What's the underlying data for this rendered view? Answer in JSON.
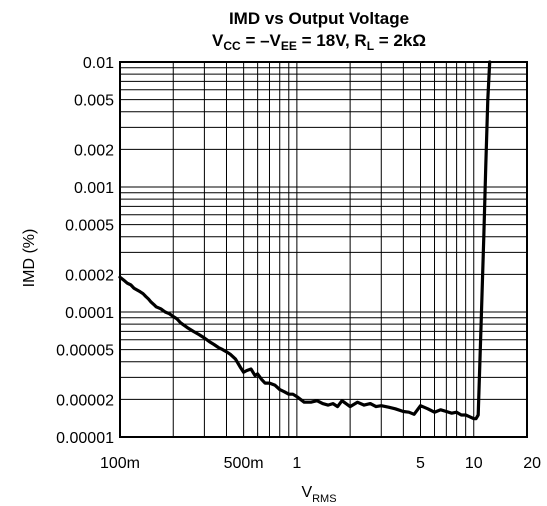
{
  "chart_data": {
    "type": "line",
    "title_line1": "IMD vs Output Voltage",
    "title_line2": {
      "v": "V",
      "cc": "CC",
      "eq1": " = –V",
      "ee": "EE",
      "eq2": " = 18V, R",
      "l": "L",
      "eq3": " = 2kΩ"
    },
    "xlabel": {
      "v": "V",
      "sub": "RMS"
    },
    "ylabel": "IMD (%)",
    "x_scale": "log",
    "y_scale": "log",
    "xlim": [
      0.1,
      20
    ],
    "ylim": [
      1e-05,
      0.01
    ],
    "grid": true,
    "x_ticks": [
      {
        "value": 0.1,
        "label": "100m"
      },
      {
        "value": 0.5,
        "label": "500m"
      },
      {
        "value": 1,
        "label": "1"
      },
      {
        "value": 5,
        "label": "5"
      },
      {
        "value": 10,
        "label": "10"
      },
      {
        "value": 20,
        "label": "20"
      }
    ],
    "y_ticks": [
      {
        "value": 0.01,
        "label": "0.01"
      },
      {
        "value": 0.005,
        "label": "0.005"
      },
      {
        "value": 0.002,
        "label": "0.002"
      },
      {
        "value": 0.001,
        "label": "0.001"
      },
      {
        "value": 0.0005,
        "label": "0.0005"
      },
      {
        "value": 0.0002,
        "label": "0.0002"
      },
      {
        "value": 0.0001,
        "label": "0.0001"
      },
      {
        "value": 5e-05,
        "label": "0.00005"
      },
      {
        "value": 2e-05,
        "label": "0.00002"
      },
      {
        "value": 1e-05,
        "label": "0.00001"
      }
    ],
    "series": [
      {
        "color": "#000000",
        "x": [
          0.1,
          0.105,
          0.11,
          0.115,
          0.12,
          0.125,
          0.13,
          0.135,
          0.14,
          0.145,
          0.15,
          0.155,
          0.16,
          0.17,
          0.18,
          0.19,
          0.2,
          0.21,
          0.22,
          0.24,
          0.26,
          0.28,
          0.3,
          0.32,
          0.34,
          0.36,
          0.38,
          0.4,
          0.42,
          0.45,
          0.48,
          0.5,
          0.52,
          0.55,
          0.58,
          0.6,
          0.63,
          0.66,
          0.7,
          0.75,
          0.8,
          0.85,
          0.9,
          0.95,
          1.0,
          1.1,
          1.2,
          1.3,
          1.4,
          1.5,
          1.6,
          1.7,
          1.8,
          2.0,
          2.2,
          2.4,
          2.6,
          2.8,
          3.0,
          3.3,
          3.6,
          4.0,
          4.3,
          4.6,
          5.0,
          5.5,
          6.0,
          6.5,
          7.0,
          7.5,
          8.0,
          8.5,
          9.0,
          9.5,
          10.0,
          10.3,
          10.6,
          11.0,
          11.4,
          11.7,
          12.0,
          12.3
        ],
        "y": [
          0.00019,
          0.00018,
          0.00017,
          0.000165,
          0.000155,
          0.00015,
          0.000145,
          0.00014,
          0.000133,
          0.000127,
          0.00012,
          0.000115,
          0.00011,
          0.000106,
          0.0001,
          9.7e-05,
          9.2e-05,
          8.8e-05,
          8.2e-05,
          7.5e-05,
          7e-05,
          6.6e-05,
          6.2e-05,
          5.8e-05,
          5.5e-05,
          5.2e-05,
          5e-05,
          4.8e-05,
          4.6e-05,
          4.2e-05,
          3.6e-05,
          3.3e-05,
          3.4e-05,
          3.5e-05,
          3.1e-05,
          3.2e-05,
          2.9e-05,
          2.7e-05,
          2.7e-05,
          2.6e-05,
          2.4e-05,
          2.3e-05,
          2.2e-05,
          2.2e-05,
          2.1e-05,
          1.9e-05,
          1.9e-05,
          1.95e-05,
          1.85e-05,
          1.8e-05,
          1.85e-05,
          1.75e-05,
          1.95e-05,
          1.75e-05,
          1.9e-05,
          1.8e-05,
          1.85e-05,
          1.75e-05,
          1.78e-05,
          1.73e-05,
          1.68e-05,
          1.6e-05,
          1.58e-05,
          1.52e-05,
          1.78e-05,
          1.68e-05,
          1.58e-05,
          1.65e-05,
          1.6e-05,
          1.55e-05,
          1.58e-05,
          1.5e-05,
          1.5e-05,
          1.45e-05,
          1.4e-05,
          1.4e-05,
          1.5e-05,
          8e-05,
          0.0004,
          0.0015,
          0.005,
          0.01
        ]
      }
    ]
  }
}
